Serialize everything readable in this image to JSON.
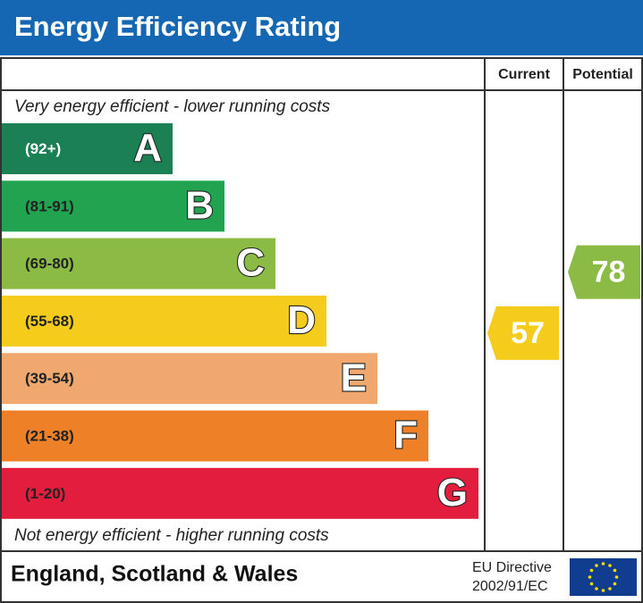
{
  "header": {
    "title": "Energy Efficiency Rating"
  },
  "columns": {
    "current": "Current",
    "potential": "Potential"
  },
  "top_note": "Very energy efficient - lower running costs",
  "bottom_note": "Not energy efficient - higher running costs",
  "bands": [
    {
      "range": "(92+)",
      "letter": "A",
      "color": "#1b8154"
    },
    {
      "range": "(81-91)",
      "letter": "B",
      "color": "#22a350"
    },
    {
      "range": "(69-80)",
      "letter": "C",
      "color": "#8cbb45"
    },
    {
      "range": "(55-68)",
      "letter": "D",
      "color": "#f5cc1b"
    },
    {
      "range": "(39-54)",
      "letter": "E",
      "color": "#f1a86e"
    },
    {
      "range": "(21-38)",
      "letter": "F",
      "color": "#ee8128"
    },
    {
      "range": "(1-20)",
      "letter": "G",
      "color": "#e21d3e"
    }
  ],
  "ratings": {
    "current": 57,
    "potential": 78
  },
  "footer": {
    "region": "England, Scotland & Wales",
    "directive": [
      "EU Directive",
      "2002/91/EC"
    ]
  }
}
